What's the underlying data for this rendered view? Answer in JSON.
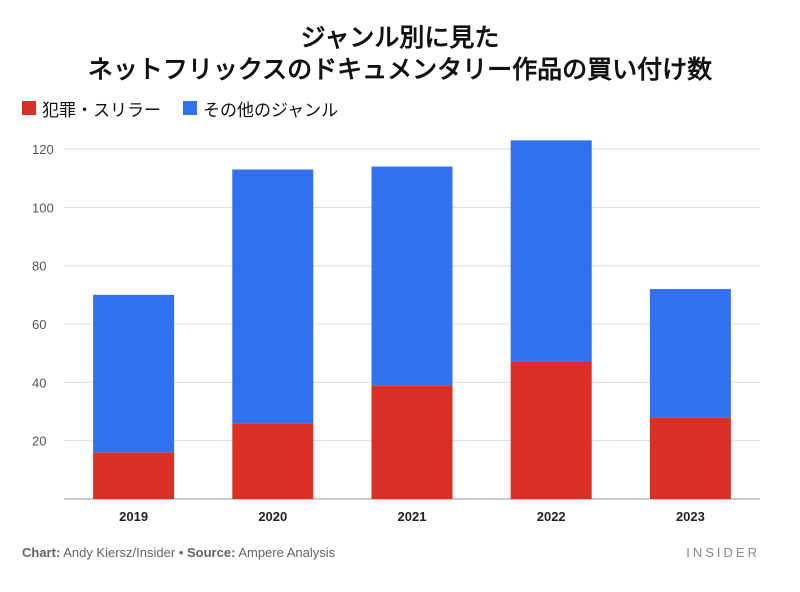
{
  "chart_data": {
    "type": "bar",
    "stacked": true,
    "title_lines": [
      "ジャンル別に見た",
      "ネットフリックスのドキュメンタリー作品の買い付け数"
    ],
    "categories": [
      "2019",
      "2020",
      "2021",
      "2022",
      "2023"
    ],
    "series": [
      {
        "name": "犯罪・スリラー",
        "color": "#d93025",
        "values": [
          16,
          26,
          39,
          47,
          28
        ]
      },
      {
        "name": "その他のジャンル",
        "color": "#3170ee",
        "values": [
          54,
          87,
          75,
          76,
          44
        ]
      }
    ],
    "y_ticks": [
      20,
      40,
      60,
      80,
      100,
      120
    ],
    "ylim": [
      0,
      120
    ],
    "grid": true,
    "legend_position": "top-left"
  },
  "footer": {
    "chart_label": "Chart:",
    "chart_value": "Andy Kiersz/Insider",
    "separator": "•",
    "source_label": "Source:",
    "source_value": "Ampere Analysis"
  },
  "brand": "INSIDER"
}
